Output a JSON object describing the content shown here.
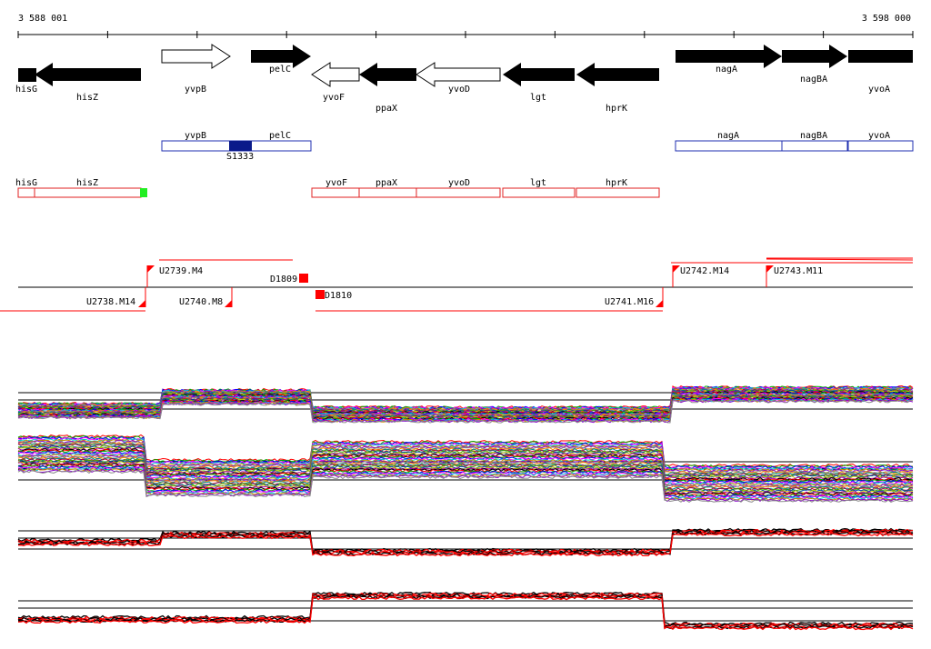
{
  "coord_start": "3 588 001",
  "coord_end": "3 598 000",
  "genes": [
    {
      "name": "hisG"
    },
    {
      "name": "hisZ"
    },
    {
      "name": "yvpB"
    },
    {
      "name": "pelC"
    },
    {
      "name": "yvoF"
    },
    {
      "name": "ppaX"
    },
    {
      "name": "yvoD"
    },
    {
      "name": "lgt"
    },
    {
      "name": "hprK"
    },
    {
      "name": "nagA"
    },
    {
      "name": "nagBA"
    },
    {
      "name": "yvoA"
    }
  ],
  "operons_blue": {
    "labels": [
      "yvpB",
      "pelC",
      "nagA",
      "nagBA",
      "yvoA"
    ],
    "feature": "S1333"
  },
  "operons_red": {
    "labels": [
      "hisG",
      "hisZ",
      "yvoF",
      "ppaX",
      "yvoD",
      "lgt",
      "hprK"
    ]
  },
  "regulatory_sites": [
    "U2739.M4",
    "U2738.M14",
    "U2740.M8",
    "D1809",
    "D1810",
    "U2741.M16",
    "U2742.M14",
    "U2743.M11"
  ],
  "colors": {
    "gene_fill": "#000000",
    "operon_blue": "#1f2fb0",
    "operon_red": "#e02020",
    "feature_blue": "#0a1a8a",
    "green_marker": "#22ee22",
    "site_red": "#ff0000",
    "axis": "#000000"
  }
}
